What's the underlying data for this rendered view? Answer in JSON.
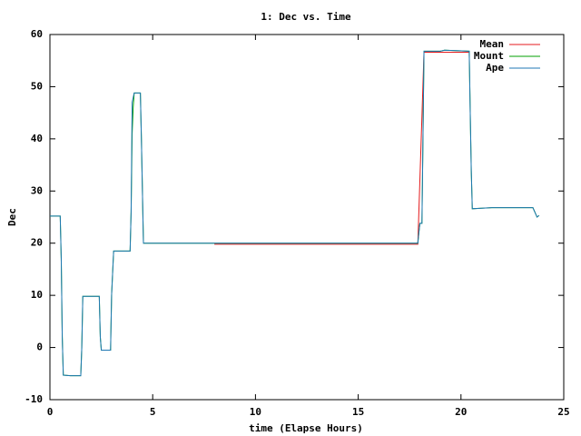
{
  "chart_data": {
    "type": "line",
    "title": "1: Dec vs. Time",
    "x_label": "time (Elapse Hours)",
    "y_label": "Dec",
    "xlim": [
      0,
      25
    ],
    "xticks": [
      0,
      5,
      10,
      15,
      20,
      25
    ],
    "ylim": [
      -10,
      60
    ],
    "yticks": [
      -10,
      0,
      10,
      20,
      30,
      40,
      50,
      60
    ],
    "grid": false,
    "legend": "top-right",
    "series": [
      {
        "name": "Mean",
        "color": "#e41a1c",
        "x": [
          8,
          17.9,
          18.2,
          20.4
        ],
        "values": [
          19.8,
          19.8,
          56.6,
          56.6
        ]
      },
      {
        "name": "Mount",
        "color": "#00a000",
        "x": [
          0,
          0.5,
          0.55,
          0.6,
          0.65,
          1.0,
          1.5,
          1.55,
          1.6,
          2.4,
          2.45,
          2.5,
          2.95,
          3.0,
          3.1,
          3.9,
          3.95,
          4.0,
          4.05,
          4.1,
          4.4,
          4.45,
          4.55,
          17.9,
          17.95,
          18.0,
          18.1,
          18.15,
          18.2,
          19.0,
          19.2,
          20.4,
          20.45,
          20.5,
          20.55,
          21.0,
          21.5,
          23.5,
          23.6,
          23.7,
          23.8
        ],
        "values": [
          25.2,
          25.2,
          17,
          2,
          -5.3,
          -5.4,
          -5.4,
          0,
          9.8,
          9.8,
          2,
          -0.5,
          -0.5,
          10,
          18.5,
          18.5,
          26,
          41,
          46,
          48.8,
          48.8,
          40,
          20,
          20,
          22,
          23.8,
          23.8,
          40,
          56.8,
          56.8,
          57,
          56.8,
          45,
          34,
          26.6,
          26.7,
          26.8,
          26.8,
          25.9,
          25,
          25.3
        ]
      },
      {
        "name": "Ape",
        "color": "#1f77b4",
        "x": [
          0,
          0.5,
          0.55,
          0.6,
          0.65,
          1.0,
          1.5,
          1.55,
          1.6,
          2.4,
          2.45,
          2.5,
          2.95,
          3.0,
          3.1,
          3.9,
          3.95,
          4.0,
          4.1,
          4.4,
          4.45,
          4.55,
          17.9,
          17.95,
          18.0,
          18.1,
          18.15,
          18.2,
          19.0,
          19.2,
          20.4,
          20.45,
          20.5,
          20.55,
          21.0,
          21.5,
          23.5,
          23.6,
          23.7,
          23.8
        ],
        "values": [
          25.2,
          25.2,
          17,
          2,
          -5.3,
          -5.4,
          -5.4,
          0,
          9.8,
          9.8,
          2,
          -0.5,
          -0.5,
          10,
          18.5,
          18.5,
          26,
          47,
          48.8,
          48.8,
          40,
          20,
          20,
          22,
          23.8,
          23.8,
          40,
          56.8,
          56.8,
          57,
          56.8,
          45,
          34,
          26.6,
          26.7,
          26.8,
          26.8,
          25.9,
          25,
          25.3
        ]
      }
    ]
  }
}
